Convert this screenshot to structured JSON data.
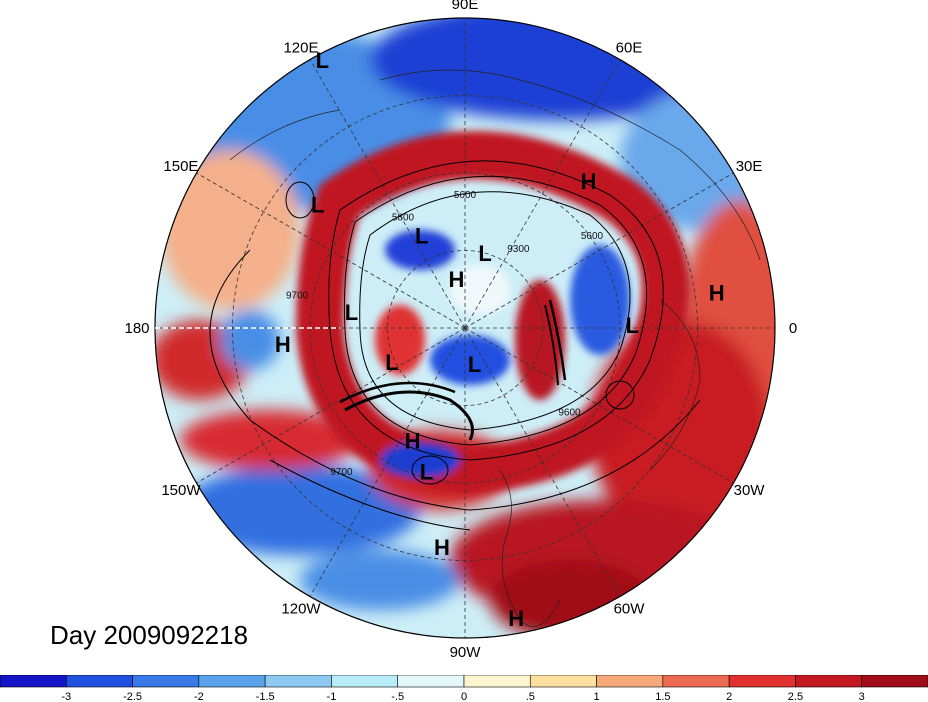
{
  "title": "Day 2009092218",
  "longitude_labels": [
    {
      "text": "90E",
      "angle_deg": 90
    },
    {
      "text": "60E",
      "angle_deg": 60
    },
    {
      "text": "30E",
      "angle_deg": 30
    },
    {
      "text": "0",
      "angle_deg": 0
    },
    {
      "text": "30W",
      "angle_deg": -30
    },
    {
      "text": "60W",
      "angle_deg": -60
    },
    {
      "text": "90W",
      "angle_deg": -90
    },
    {
      "text": "120W",
      "angle_deg": -120
    },
    {
      "text": "150W",
      "angle_deg": -150
    },
    {
      "text": "180",
      "angle_deg": 180
    },
    {
      "text": "150E",
      "angle_deg": 150
    },
    {
      "text": "120E",
      "angle_deg": 120
    }
  ],
  "pressure_systems": [
    {
      "type": "L",
      "lon": 118,
      "r_frac": 0.98
    },
    {
      "type": "H",
      "lon": 50,
      "r_frac": 0.62
    },
    {
      "type": "L",
      "lon": 140,
      "r_frac": 0.62
    },
    {
      "type": "L",
      "lon": 115,
      "r_frac": 0.33
    },
    {
      "type": "L",
      "lon": 75,
      "r_frac": 0.25
    },
    {
      "type": "H",
      "lon": 100,
      "r_frac": 0.16
    },
    {
      "type": "H",
      "lon": 8,
      "r_frac": 0.82
    },
    {
      "type": "L",
      "lon": 1,
      "r_frac": 0.54
    },
    {
      "type": "L",
      "lon": 172,
      "r_frac": 0.37
    },
    {
      "type": "L",
      "lon": -155,
      "r_frac": 0.26
    },
    {
      "type": "L",
      "lon": -75,
      "r_frac": 0.12
    },
    {
      "type": "H",
      "lon": -175,
      "r_frac": 0.59
    },
    {
      "type": "H",
      "lon": -115,
      "r_frac": 0.4
    },
    {
      "type": "L",
      "lon": -105,
      "r_frac": 0.48
    },
    {
      "type": "H",
      "lon": -96,
      "r_frac": 0.71
    },
    {
      "type": "H",
      "lon": -80,
      "r_frac": 0.95
    }
  ],
  "contour_labels": [
    {
      "text": "5600",
      "lon": 90,
      "r_frac": 0.42
    },
    {
      "text": "5800",
      "lon": 120,
      "r_frac": 0.4
    },
    {
      "text": "9300",
      "lon": 55,
      "r_frac": 0.3
    },
    {
      "text": "5600",
      "lon": 35,
      "r_frac": 0.5
    },
    {
      "text": "9600",
      "lon": -40,
      "r_frac": 0.44
    },
    {
      "text": "9700",
      "lon": -130,
      "r_frac": 0.62
    },
    {
      "text": "9700",
      "lon": 170,
      "r_frac": 0.55
    }
  ],
  "colorbar": {
    "ticks": [
      "-3",
      "-2.5",
      "-2",
      "-1.5",
      "-1",
      "-.5",
      "0",
      ".5",
      "1",
      "1.5",
      "2",
      "2.5",
      "3"
    ],
    "colors": [
      "#1414c8",
      "#2050e0",
      "#3a7ae8",
      "#5aa2ec",
      "#8ccaf2",
      "#b8ecf8",
      "#e4f8fb",
      "#fdf4d0",
      "#fde0a0",
      "#f6a878",
      "#ec6a50",
      "#e03030",
      "#c41820",
      "#a00c18"
    ]
  }
}
